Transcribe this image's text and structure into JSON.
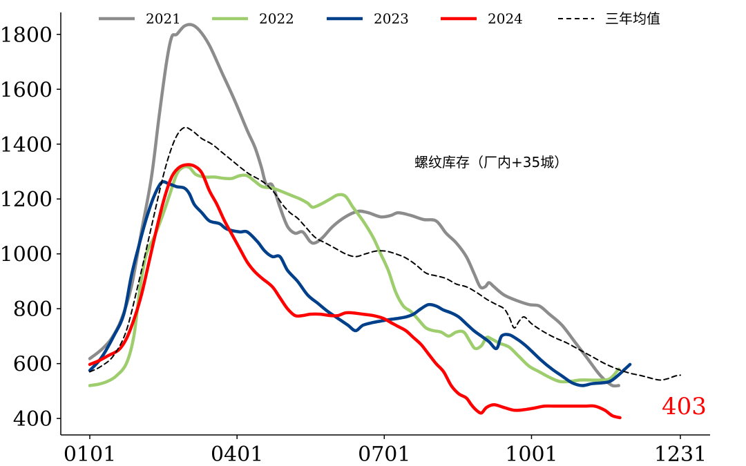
{
  "chart_data": {
    "type": "line",
    "title": "",
    "annotation": "螺纹库存（厂内+35城）",
    "xlabel": "",
    "ylabel": "",
    "x_ticks": [
      "0101",
      "0401",
      "0701",
      "1001",
      "1231"
    ],
    "x_tick_days": [
      1,
      91,
      181,
      271,
      362
    ],
    "x_range_days": [
      1,
      362
    ],
    "ylim": [
      340,
      1880
    ],
    "y_ticks": [
      400,
      600,
      800,
      1000,
      1200,
      1400,
      1600,
      1800
    ],
    "grid": false,
    "legend_position": "top",
    "end_label": {
      "series": "2024",
      "text": "403"
    },
    "series": [
      {
        "name": "2021",
        "color": "#8c8c8c",
        "dash": false,
        "points": [
          [
            1,
            618
          ],
          [
            10,
            650
          ],
          [
            18,
            690
          ],
          [
            26,
            760
          ],
          [
            34,
            880
          ],
          [
            42,
            1080
          ],
          [
            50,
            1280
          ],
          [
            56,
            1500
          ],
          [
            62,
            1700
          ],
          [
            66,
            1790
          ],
          [
            70,
            1800
          ],
          [
            76,
            1830
          ],
          [
            82,
            1835
          ],
          [
            88,
            1815
          ],
          [
            96,
            1760
          ],
          [
            106,
            1660
          ],
          [
            116,
            1560
          ],
          [
            126,
            1450
          ],
          [
            132,
            1390
          ],
          [
            137,
            1320
          ],
          [
            141,
            1255
          ],
          [
            146,
            1250
          ],
          [
            152,
            1170
          ],
          [
            158,
            1100
          ],
          [
            164,
            1075
          ],
          [
            170,
            1080
          ],
          [
            176,
            1045
          ],
          [
            180,
            1040
          ],
          [
            186,
            1060
          ],
          [
            194,
            1100
          ],
          [
            204,
            1135
          ],
          [
            214,
            1155
          ],
          [
            222,
            1150
          ],
          [
            232,
            1135
          ],
          [
            240,
            1140
          ],
          [
            246,
            1150
          ],
          [
            256,
            1140
          ],
          [
            266,
            1125
          ],
          [
            276,
            1120
          ],
          [
            284,
            1075
          ],
          [
            292,
            1040
          ],
          [
            300,
            990
          ],
          [
            306,
            930
          ],
          [
            311,
            880
          ],
          [
            315,
            880
          ],
          [
            318,
            895
          ],
          [
            322,
            880
          ],
          [
            330,
            850
          ],
          [
            340,
            830
          ],
          [
            350,
            815
          ],
          [
            358,
            810
          ],
          [
            366,
            780
          ],
          [
            376,
            740
          ],
          [
            386,
            680
          ],
          [
            396,
            620
          ],
          [
            404,
            570
          ],
          [
            410,
            540
          ],
          [
            416,
            520
          ],
          [
            421,
            520
          ]
        ]
      },
      {
        "name": "2022",
        "color": "#9dcd6c",
        "dash": false,
        "points": [
          [
            1,
            520
          ],
          [
            8,
            525
          ],
          [
            15,
            535
          ],
          [
            22,
            555
          ],
          [
            30,
            600
          ],
          [
            36,
            700
          ],
          [
            41,
            880
          ],
          [
            46,
            1000
          ],
          [
            52,
            1060
          ],
          [
            58,
            1130
          ],
          [
            64,
            1210
          ],
          [
            70,
            1290
          ],
          [
            75,
            1315
          ],
          [
            80,
            1315
          ],
          [
            85,
            1290
          ],
          [
            92,
            1280
          ],
          [
            100,
            1280
          ],
          [
            108,
            1275
          ],
          [
            114,
            1275
          ],
          [
            120,
            1285
          ],
          [
            126,
            1285
          ],
          [
            132,
            1265
          ],
          [
            138,
            1245
          ],
          [
            146,
            1240
          ],
          [
            152,
            1230
          ],
          [
            160,
            1215
          ],
          [
            168,
            1200
          ],
          [
            174,
            1185
          ],
          [
            178,
            1170
          ],
          [
            184,
            1180
          ],
          [
            192,
            1200
          ],
          [
            198,
            1215
          ],
          [
            204,
            1210
          ],
          [
            210,
            1170
          ],
          [
            218,
            1120
          ],
          [
            226,
            1060
          ],
          [
            232,
            1000
          ],
          [
            238,
            940
          ],
          [
            244,
            860
          ],
          [
            250,
            810
          ],
          [
            256,
            790
          ],
          [
            262,
            760
          ],
          [
            268,
            730
          ],
          [
            274,
            720
          ],
          [
            280,
            715
          ],
          [
            286,
            700
          ],
          [
            292,
            715
          ],
          [
            298,
            715
          ],
          [
            303,
            680
          ],
          [
            307,
            655
          ],
          [
            312,
            665
          ],
          [
            316,
            695
          ],
          [
            320,
            690
          ],
          [
            326,
            675
          ],
          [
            334,
            660
          ],
          [
            342,
            625
          ],
          [
            350,
            590
          ],
          [
            358,
            570
          ],
          [
            366,
            550
          ],
          [
            374,
            535
          ],
          [
            382,
            535
          ],
          [
            390,
            540
          ],
          [
            398,
            540
          ],
          [
            406,
            540
          ],
          [
            414,
            545
          ],
          [
            421,
            580
          ]
        ]
      },
      {
        "name": "2023",
        "color": "#003f8a",
        "dash": false,
        "points": [
          [
            1,
            575
          ],
          [
            10,
            620
          ],
          [
            20,
            700
          ],
          [
            28,
            780
          ],
          [
            34,
            920
          ],
          [
            40,
            1030
          ],
          [
            46,
            1130
          ],
          [
            52,
            1210
          ],
          [
            58,
            1260
          ],
          [
            64,
            1255
          ],
          [
            70,
            1245
          ],
          [
            76,
            1240
          ],
          [
            80,
            1220
          ],
          [
            84,
            1180
          ],
          [
            90,
            1150
          ],
          [
            96,
            1120
          ],
          [
            104,
            1110
          ],
          [
            110,
            1090
          ],
          [
            120,
            1080
          ],
          [
            126,
            1080
          ],
          [
            134,
            1045
          ],
          [
            140,
            1010
          ],
          [
            146,
            990
          ],
          [
            152,
            990
          ],
          [
            158,
            940
          ],
          [
            166,
            900
          ],
          [
            174,
            850
          ],
          [
            182,
            820
          ],
          [
            190,
            790
          ],
          [
            198,
            765
          ],
          [
            206,
            740
          ],
          [
            212,
            720
          ],
          [
            218,
            740
          ],
          [
            226,
            750
          ],
          [
            232,
            755
          ],
          [
            238,
            760
          ],
          [
            246,
            765
          ],
          [
            252,
            770
          ],
          [
            258,
            780
          ],
          [
            264,
            800
          ],
          [
            270,
            815
          ],
          [
            276,
            810
          ],
          [
            282,
            795
          ],
          [
            288,
            785
          ],
          [
            294,
            770
          ],
          [
            300,
            745
          ],
          [
            306,
            720
          ],
          [
            312,
            700
          ],
          [
            318,
            680
          ],
          [
            324,
            655
          ],
          [
            328,
            700
          ],
          [
            334,
            705
          ],
          [
            340,
            690
          ],
          [
            346,
            670
          ],
          [
            352,
            645
          ],
          [
            360,
            610
          ],
          [
            368,
            580
          ],
          [
            376,
            555
          ],
          [
            384,
            530
          ],
          [
            392,
            520
          ],
          [
            400,
            527
          ],
          [
            408,
            530
          ],
          [
            414,
            535
          ],
          [
            420,
            555
          ],
          [
            426,
            580
          ],
          [
            430,
            597
          ]
        ]
      },
      {
        "name": "2024",
        "color": "#ff0000",
        "dash": false,
        "points": [
          [
            1,
            597
          ],
          [
            8,
            610
          ],
          [
            16,
            630
          ],
          [
            24,
            650
          ],
          [
            30,
            690
          ],
          [
            36,
            760
          ],
          [
            42,
            850
          ],
          [
            48,
            970
          ],
          [
            54,
            1090
          ],
          [
            60,
            1200
          ],
          [
            66,
            1280
          ],
          [
            72,
            1315
          ],
          [
            78,
            1325
          ],
          [
            84,
            1320
          ],
          [
            90,
            1295
          ],
          [
            96,
            1230
          ],
          [
            102,
            1180
          ],
          [
            108,
            1120
          ],
          [
            114,
            1070
          ],
          [
            120,
            1020
          ],
          [
            126,
            970
          ],
          [
            132,
            935
          ],
          [
            138,
            910
          ],
          [
            146,
            880
          ],
          [
            152,
            840
          ],
          [
            158,
            800
          ],
          [
            164,
            775
          ],
          [
            170,
            775
          ],
          [
            176,
            780
          ],
          [
            184,
            780
          ],
          [
            192,
            775
          ],
          [
            198,
            775
          ],
          [
            204,
            785
          ],
          [
            210,
            785
          ],
          [
            218,
            780
          ],
          [
            226,
            775
          ],
          [
            234,
            765
          ],
          [
            240,
            750
          ],
          [
            246,
            735
          ],
          [
            252,
            720
          ],
          [
            258,
            695
          ],
          [
            264,
            670
          ],
          [
            270,
            635
          ],
          [
            276,
            600
          ],
          [
            282,
            570
          ],
          [
            288,
            520
          ],
          [
            294,
            490
          ],
          [
            300,
            475
          ],
          [
            304,
            450
          ],
          [
            308,
            430
          ],
          [
            312,
            420
          ],
          [
            316,
            440
          ],
          [
            322,
            450
          ],
          [
            330,
            440
          ],
          [
            338,
            430
          ],
          [
            346,
            432
          ],
          [
            354,
            438
          ],
          [
            362,
            445
          ],
          [
            370,
            445
          ],
          [
            378,
            445
          ],
          [
            386,
            445
          ],
          [
            394,
            445
          ],
          [
            402,
            445
          ],
          [
            410,
            430
          ],
          [
            416,
            410
          ],
          [
            422,
            403
          ]
        ]
      },
      {
        "name": "三年均值",
        "color": "#000000",
        "dash": true,
        "points": [
          [
            1,
            570
          ],
          [
            10,
            590
          ],
          [
            20,
            630
          ],
          [
            30,
            720
          ],
          [
            40,
            900
          ],
          [
            50,
            1100
          ],
          [
            58,
            1260
          ],
          [
            64,
            1360
          ],
          [
            70,
            1430
          ],
          [
            76,
            1460
          ],
          [
            82,
            1450
          ],
          [
            90,
            1420
          ],
          [
            98,
            1400
          ],
          [
            106,
            1370
          ],
          [
            114,
            1340
          ],
          [
            122,
            1310
          ],
          [
            128,
            1290
          ],
          [
            136,
            1270
          ],
          [
            142,
            1250
          ],
          [
            148,
            1220
          ],
          [
            154,
            1180
          ],
          [
            160,
            1150
          ],
          [
            166,
            1130
          ],
          [
            172,
            1100
          ],
          [
            180,
            1060
          ],
          [
            188,
            1040
          ],
          [
            196,
            1020
          ],
          [
            204,
            1000
          ],
          [
            212,
            990
          ],
          [
            220,
            1000
          ],
          [
            228,
            1010
          ],
          [
            236,
            1010
          ],
          [
            244,
            1000
          ],
          [
            252,
            985
          ],
          [
            260,
            960
          ],
          [
            268,
            930
          ],
          [
            276,
            920
          ],
          [
            284,
            910
          ],
          [
            292,
            890
          ],
          [
            300,
            880
          ],
          [
            308,
            860
          ],
          [
            316,
            835
          ],
          [
            324,
            815
          ],
          [
            330,
            800
          ],
          [
            334,
            770
          ],
          [
            338,
            730
          ],
          [
            342,
            755
          ],
          [
            346,
            770
          ],
          [
            352,
            745
          ],
          [
            360,
            720
          ],
          [
            370,
            695
          ],
          [
            380,
            675
          ],
          [
            390,
            650
          ],
          [
            400,
            625
          ],
          [
            410,
            600
          ],
          [
            420,
            580
          ],
          [
            430,
            565
          ],
          [
            440,
            555
          ],
          [
            448,
            545
          ],
          [
            454,
            540
          ],
          [
            460,
            545
          ],
          [
            466,
            555
          ],
          [
            470,
            558
          ]
        ]
      }
    ]
  }
}
